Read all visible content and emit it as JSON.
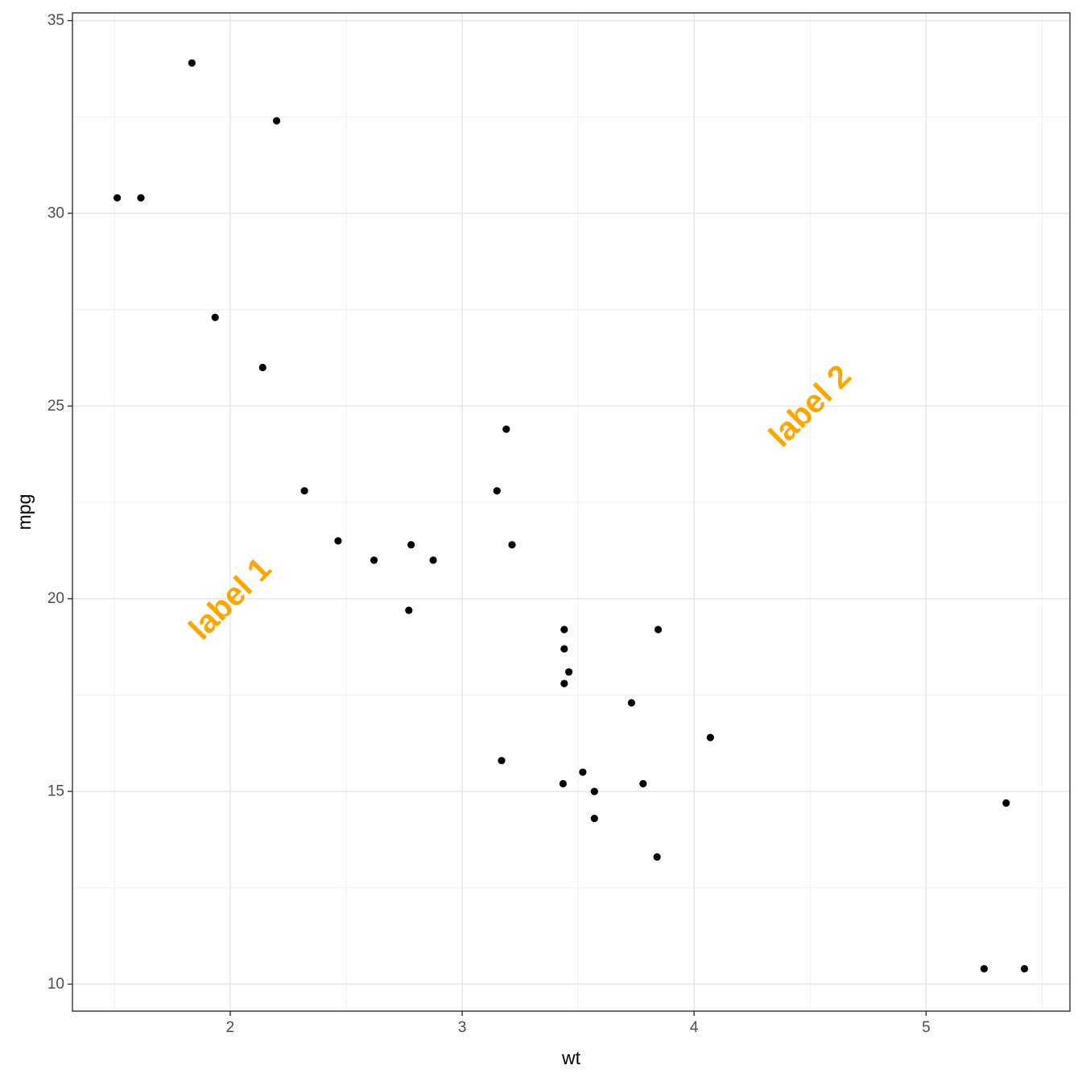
{
  "chart_data": {
    "type": "scatter",
    "title": "",
    "xlabel": "wt",
    "ylabel": "mpg",
    "xlim": [
      1.32,
      5.62
    ],
    "ylim": [
      9.3,
      35.2
    ],
    "x_ticks": [
      2,
      3,
      4,
      5
    ],
    "y_ticks": [
      10,
      15,
      20,
      25,
      30,
      35
    ],
    "x_minor": [
      1.5,
      2.5,
      3.5,
      4.5,
      5.5
    ],
    "y_minor": [
      12.5,
      17.5,
      22.5,
      27.5,
      32.5
    ],
    "grid": true,
    "theme": "bw",
    "point_color": "#000000",
    "points": [
      {
        "x": 1.513,
        "y": 30.4
      },
      {
        "x": 1.615,
        "y": 30.4
      },
      {
        "x": 1.835,
        "y": 33.9
      },
      {
        "x": 1.935,
        "y": 27.3
      },
      {
        "x": 2.14,
        "y": 26.0
      },
      {
        "x": 2.2,
        "y": 32.4
      },
      {
        "x": 2.32,
        "y": 22.8
      },
      {
        "x": 2.465,
        "y": 21.5
      },
      {
        "x": 2.62,
        "y": 21.0
      },
      {
        "x": 2.77,
        "y": 19.7
      },
      {
        "x": 2.78,
        "y": 21.4
      },
      {
        "x": 2.875,
        "y": 21.0
      },
      {
        "x": 3.15,
        "y": 22.8
      },
      {
        "x": 3.17,
        "y": 15.8
      },
      {
        "x": 3.19,
        "y": 24.4
      },
      {
        "x": 3.215,
        "y": 21.4
      },
      {
        "x": 3.435,
        "y": 15.2
      },
      {
        "x": 3.44,
        "y": 18.7
      },
      {
        "x": 3.44,
        "y": 19.2
      },
      {
        "x": 3.44,
        "y": 17.8
      },
      {
        "x": 3.46,
        "y": 18.1
      },
      {
        "x": 3.52,
        "y": 15.5
      },
      {
        "x": 3.57,
        "y": 14.3
      },
      {
        "x": 3.57,
        "y": 15.0
      },
      {
        "x": 3.73,
        "y": 17.3
      },
      {
        "x": 3.78,
        "y": 15.2
      },
      {
        "x": 3.84,
        "y": 13.3
      },
      {
        "x": 3.845,
        "y": 19.2
      },
      {
        "x": 4.07,
        "y": 16.4
      },
      {
        "x": 5.25,
        "y": 10.4
      },
      {
        "x": 5.345,
        "y": 14.7
      },
      {
        "x": 5.424,
        "y": 10.4
      }
    ],
    "annotations": [
      {
        "text": "label 1",
        "x": 2.0,
        "y": 20.0,
        "angle": 45,
        "color": "#FFA500"
      },
      {
        "text": "label 2",
        "x": 4.5,
        "y": 25.0,
        "angle": 45,
        "color": "#FFA500"
      }
    ]
  }
}
